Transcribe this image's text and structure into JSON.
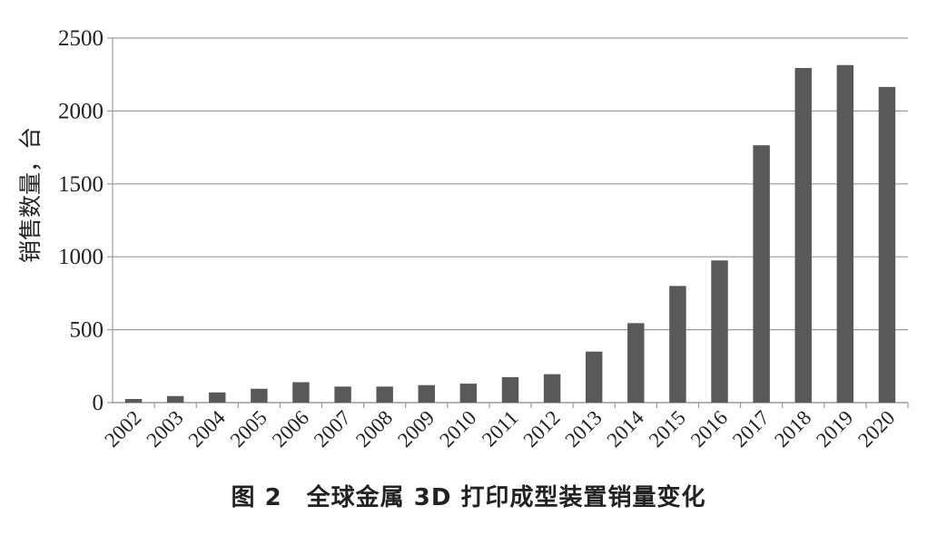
{
  "caption": "图 2　全球金属 3D 打印成型装置销量变化",
  "chart_data": {
    "type": "bar",
    "title": "",
    "xlabel": "",
    "ylabel": "销售数量，台",
    "ylim": [
      0,
      2500
    ],
    "yticks": [
      0,
      500,
      1000,
      1500,
      2000,
      2500
    ],
    "grid": true,
    "categories": [
      "2002",
      "2003",
      "2004",
      "2005",
      "2006",
      "2007",
      "2008",
      "2009",
      "2010",
      "2011",
      "2012",
      "2013",
      "2014",
      "2015",
      "2016",
      "2017",
      "2018",
      "2019",
      "2020"
    ],
    "values": [
      25,
      45,
      70,
      95,
      140,
      110,
      110,
      120,
      130,
      175,
      195,
      350,
      545,
      800,
      975,
      1765,
      2295,
      2315,
      2165
    ],
    "bar_color": "#595959",
    "grid_color": "#9a9a9a"
  }
}
